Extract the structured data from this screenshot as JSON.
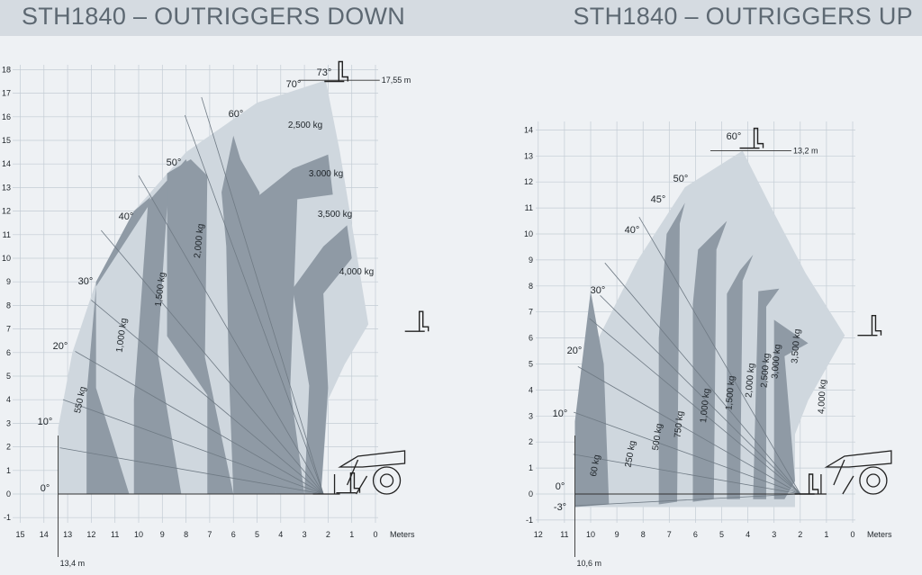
{
  "header": {
    "left_title": "STH1840 – OUTRIGGERS DOWN",
    "right_title": "STH1840 – OUTRIGGERS UP"
  },
  "colors": {
    "grid": "#c3ccd4",
    "band_dark": "#8f9aa5",
    "band_light": "#cfd7de",
    "ray": "#6f7a84",
    "text": "#1e2429"
  },
  "chart_data": [
    {
      "type": "load-chart",
      "title": "STH1840 – OUTRIGGERS DOWN",
      "xlabel": "Meters",
      "x_ticks": [
        "15",
        "14",
        "13",
        "12",
        "11",
        "10",
        "9",
        "8",
        "7",
        "6",
        "5",
        "4",
        "3",
        "2",
        "1",
        "0"
      ],
      "y_ticks": [
        "-1",
        "0",
        "1",
        "2",
        "3",
        "4",
        "5",
        "6",
        "7",
        "8",
        "9",
        "10",
        "11",
        "12",
        "13",
        "14",
        "15",
        "16",
        "17",
        "18"
      ],
      "xlim": [
        0,
        15
      ],
      "ylim": [
        -1,
        18
      ],
      "max_height_label": "17,55 m",
      "max_reach_label": "13,4 m",
      "angle_labels": [
        {
          "label": "0°",
          "deg": 0
        },
        {
          "label": "10°",
          "deg": 10
        },
        {
          "label": "20°",
          "deg": 20
        },
        {
          "label": "30°",
          "deg": 30
        },
        {
          "label": "40°",
          "deg": 40
        },
        {
          "label": "50°",
          "deg": 50
        },
        {
          "label": "60°",
          "deg": 60
        },
        {
          "label": "70°",
          "deg": 70
        },
        {
          "label": "73°",
          "deg": 73
        }
      ],
      "load_zones": [
        "550 kg",
        "1,000 kg",
        "1,500 kg",
        "2,000 kg",
        "2,500 kg",
        "3.000 kg",
        "3,500 kg",
        "4,000 kg"
      ]
    },
    {
      "type": "load-chart",
      "title": "STH1840 – OUTRIGGERS UP",
      "xlabel": "Meters",
      "x_ticks": [
        "12",
        "11",
        "10",
        "9",
        "8",
        "7",
        "6",
        "5",
        "4",
        "3",
        "2",
        "1",
        "0"
      ],
      "y_ticks": [
        "-1",
        "0",
        "1",
        "2",
        "3",
        "4",
        "5",
        "6",
        "7",
        "8",
        "9",
        "10",
        "11",
        "12",
        "13",
        "14"
      ],
      "xlim": [
        0,
        12
      ],
      "ylim": [
        -1,
        14
      ],
      "max_height_label": "13,2 m",
      "max_reach_label": "10,6 m",
      "angle_labels": [
        {
          "label": "-3°",
          "deg": -3
        },
        {
          "label": "0°",
          "deg": 0
        },
        {
          "label": "10°",
          "deg": 10
        },
        {
          "label": "20°",
          "deg": 20
        },
        {
          "label": "30°",
          "deg": 30
        },
        {
          "label": "40°",
          "deg": 40
        },
        {
          "label": "45°",
          "deg": 45
        },
        {
          "label": "50°",
          "deg": 50
        },
        {
          "label": "60°",
          "deg": 60
        }
      ],
      "load_zones": [
        "60 kg",
        "250 kg",
        "500 kg",
        "750 kg",
        "1,000 kg",
        "1,500 kg",
        "2,000 kg",
        "2,500 kg",
        "3,000 kg",
        "3,500 kg",
        "4,000 kg"
      ]
    }
  ]
}
